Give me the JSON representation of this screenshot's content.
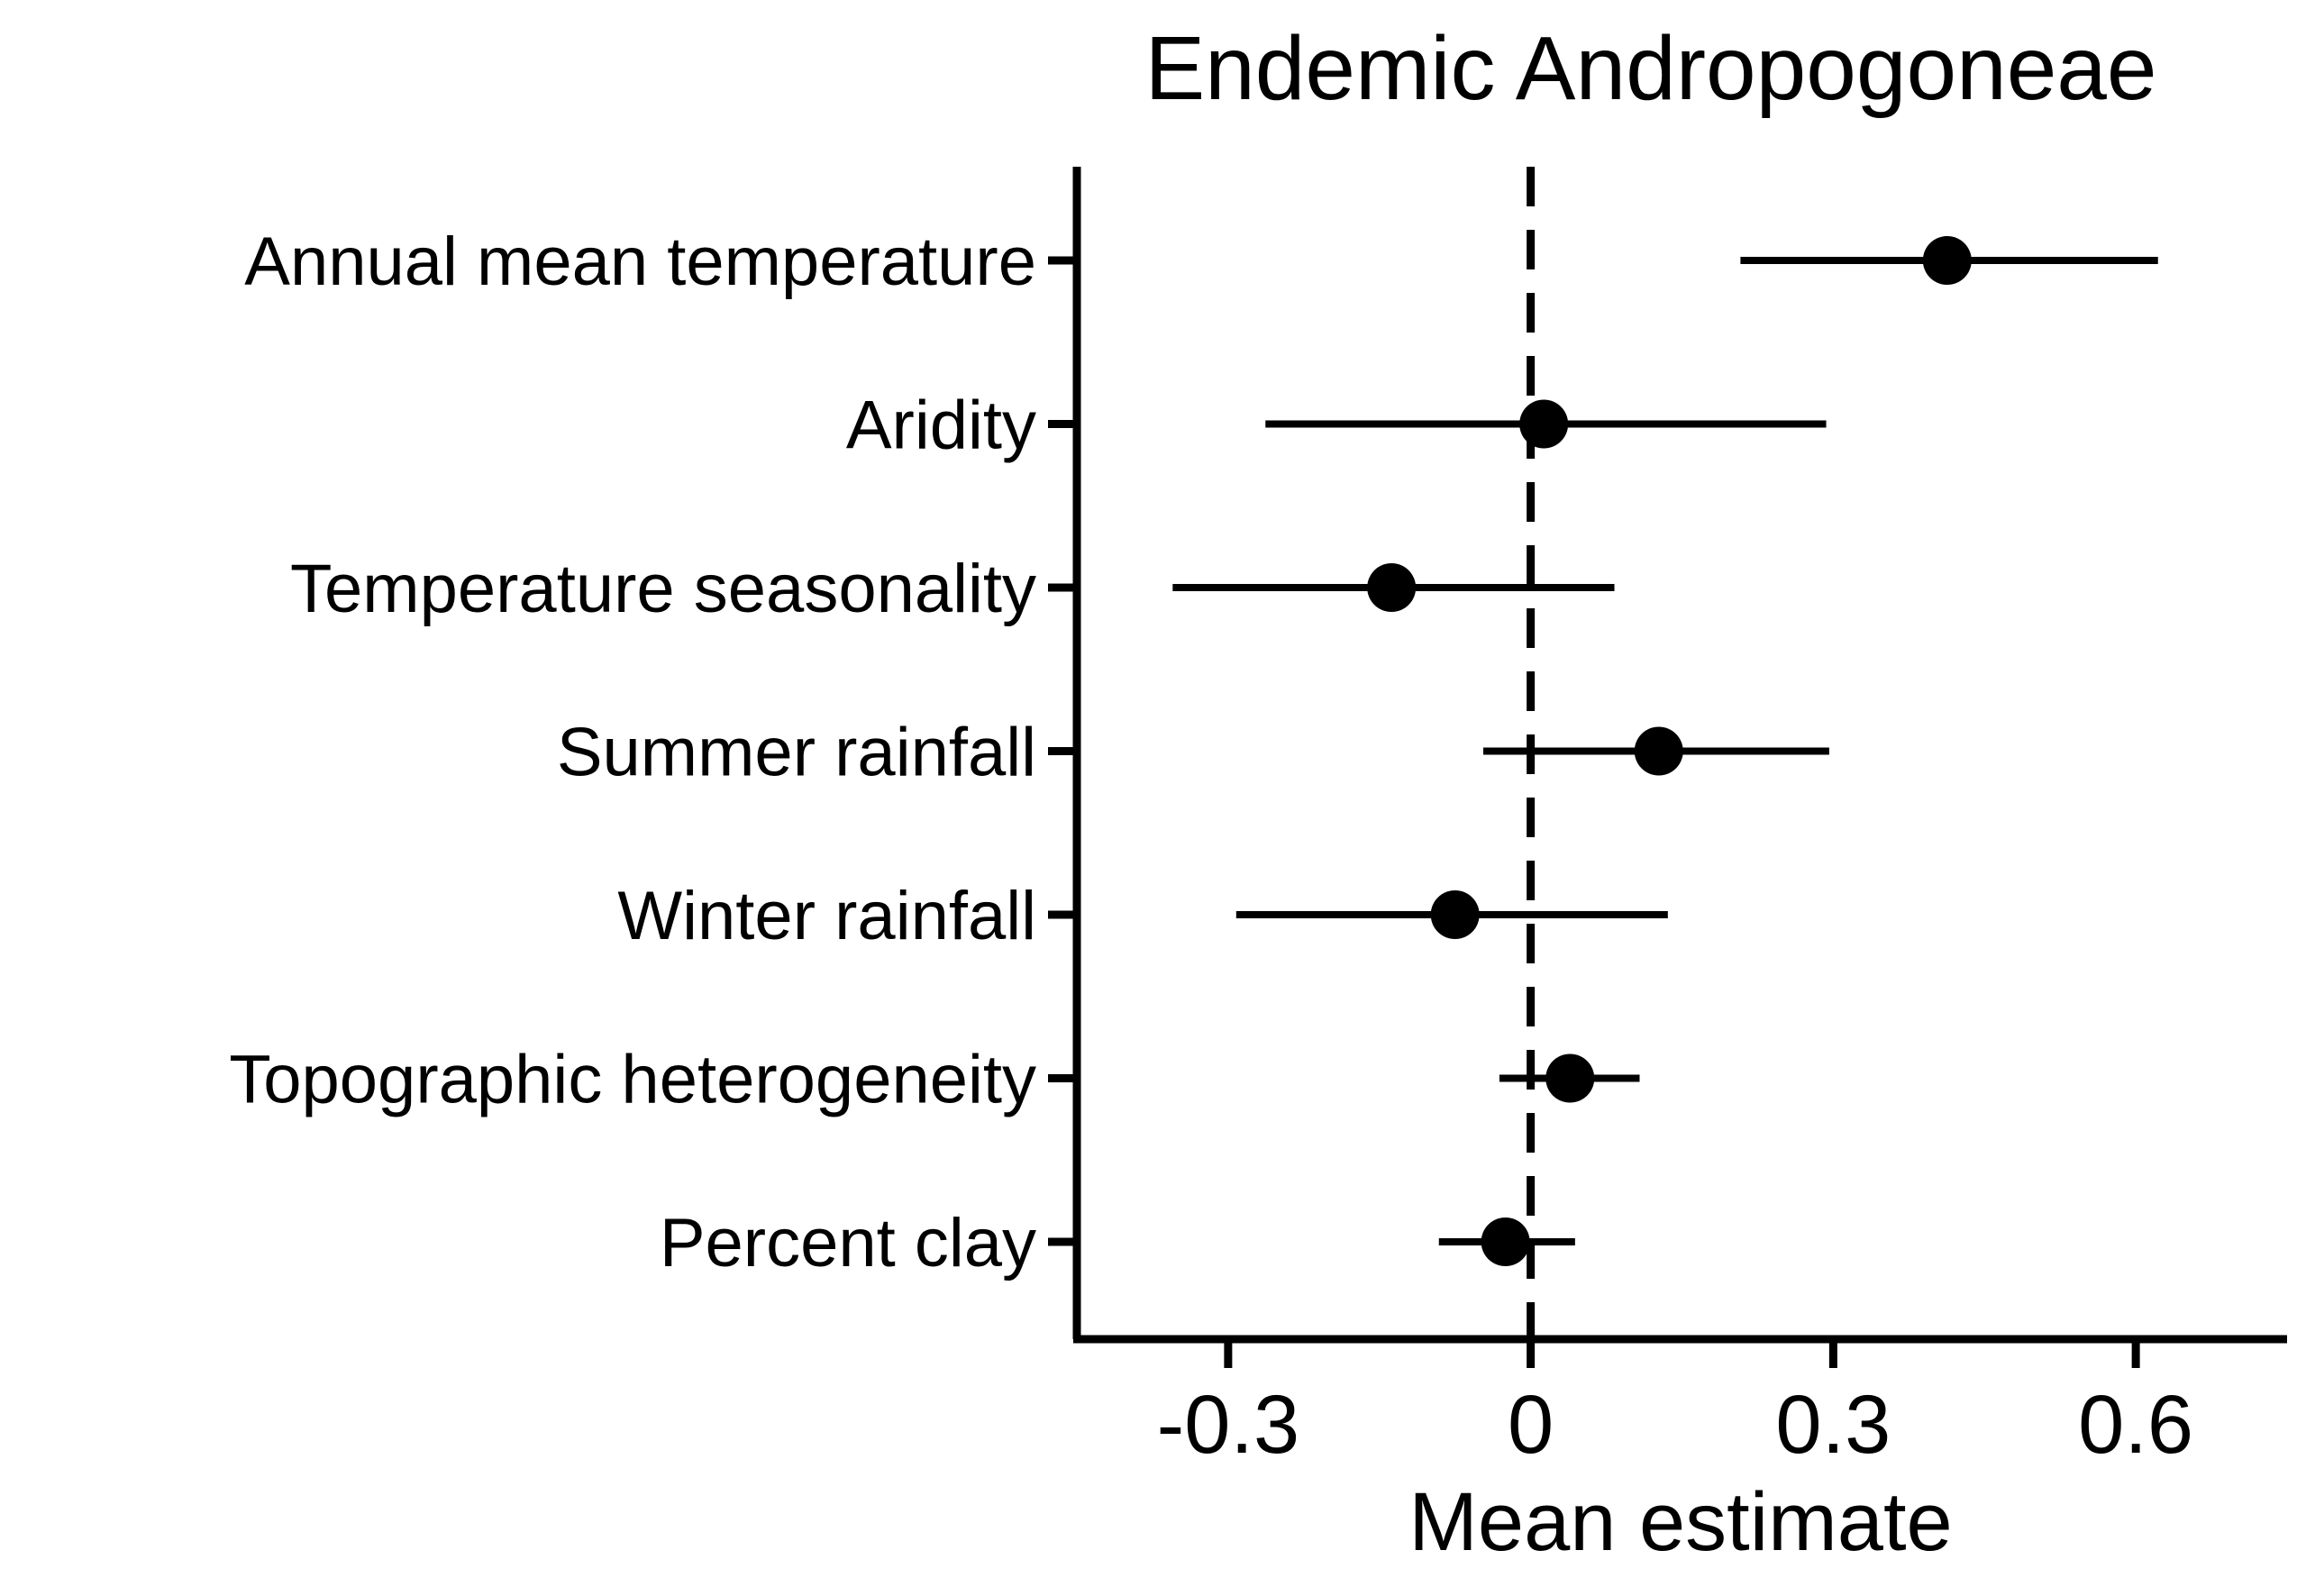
{
  "chart_data": {
    "type": "scatter",
    "subtype": "coefficient-plot",
    "title": "Endemic Andropogoneae",
    "xlabel": "Mean estimate",
    "ylabel": "",
    "xlim": [
      -0.45,
      0.75
    ],
    "x_ticks": [
      -0.3,
      0,
      0.3,
      0.6
    ],
    "x_tick_labels": [
      "-0.3",
      "0",
      "0.3",
      "0.6"
    ],
    "reference_line": {
      "x": 0,
      "style": "dashed"
    },
    "categories": [
      "Annual mean temperature",
      "Aridity",
      "Temperature seasonality",
      "Summer rainfall",
      "Winter rainfall",
      "Topographic heterogeneity",
      "Percent clay"
    ],
    "series": [
      {
        "estimates": [
          0.413,
          0.013,
          -0.138,
          0.127,
          -0.075,
          0.039,
          -0.025
        ],
        "lower": [
          0.208,
          -0.263,
          -0.355,
          -0.047,
          -0.292,
          -0.031,
          -0.091
        ],
        "upper": [
          0.622,
          0.293,
          0.083,
          0.296,
          0.136,
          0.108,
          0.044
        ]
      }
    ],
    "grid": false,
    "legend": "none",
    "colors": {
      "marks": "#000000",
      "background": "#ffffff"
    }
  }
}
